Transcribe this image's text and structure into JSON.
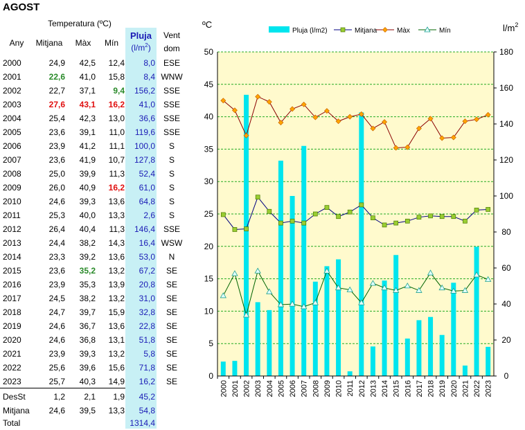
{
  "title": "AGOST",
  "table": {
    "header_group": "Temperatura (ºC)",
    "col_any": "Any",
    "col_mitjana": "Mitjana",
    "col_max": "Màx",
    "col_min": "Mín",
    "col_pluja": "Pluja",
    "col_pluja_unit_a": "(l/m",
    "col_pluja_unit_sup": "2",
    "col_pluja_unit_b": ")",
    "col_vent_a": "Vent",
    "col_vent_b": "dom",
    "rows": [
      {
        "year": "2000",
        "mitjana": "24,9",
        "max": "42,5",
        "min": "12,4",
        "pluja": "8,0",
        "vent": "ESE"
      },
      {
        "year": "2001",
        "mitjana": "22,6",
        "max": "41,0",
        "min": "15,8",
        "pluja": "8,4",
        "vent": "WNW",
        "mitjana_hl": "green"
      },
      {
        "year": "2002",
        "mitjana": "22,7",
        "max": "37,1",
        "min": "9,4",
        "pluja": "156,2",
        "vent": "SSE",
        "min_hl": "green"
      },
      {
        "year": "2003",
        "mitjana": "27,6",
        "max": "43,1",
        "min": "16,2",
        "pluja": "41,0",
        "vent": "SSE",
        "mitjana_hl": "red",
        "max_hl": "red",
        "min_hl": "red"
      },
      {
        "year": "2004",
        "mitjana": "25,4",
        "max": "42,3",
        "min": "13,0",
        "pluja": "36,6",
        "vent": "SSE"
      },
      {
        "year": "2005",
        "mitjana": "23,6",
        "max": "39,1",
        "min": "11,0",
        "pluja": "119,6",
        "vent": "SSE"
      },
      {
        "year": "2006",
        "mitjana": "23,9",
        "max": "41,2",
        "min": "11,1",
        "pluja": "100,0",
        "vent": "S"
      },
      {
        "year": "2007",
        "mitjana": "23,6",
        "max": "41,9",
        "min": "10,7",
        "pluja": "127,8",
        "vent": "S"
      },
      {
        "year": "2008",
        "mitjana": "25,0",
        "max": "39,9",
        "min": "11,3",
        "pluja": "52,4",
        "vent": "S"
      },
      {
        "year": "2009",
        "mitjana": "26,0",
        "max": "40,9",
        "min": "16,2",
        "pluja": "61,0",
        "vent": "S",
        "min_hl": "red"
      },
      {
        "year": "2010",
        "mitjana": "24,6",
        "max": "39,3",
        "min": "13,6",
        "pluja": "64,8",
        "vent": "S"
      },
      {
        "year": "2011",
        "mitjana": "25,3",
        "max": "40,0",
        "min": "13,3",
        "pluja": "2,6",
        "vent": "S"
      },
      {
        "year": "2012",
        "mitjana": "26,4",
        "max": "40,4",
        "min": "11,3",
        "pluja": "146,4",
        "vent": "SSE"
      },
      {
        "year": "2013",
        "mitjana": "24,4",
        "max": "38,2",
        "min": "14,3",
        "pluja": "16,4",
        "vent": "WSW"
      },
      {
        "year": "2014",
        "mitjana": "23,3",
        "max": "39,2",
        "min": "13,6",
        "pluja": "53,0",
        "vent": "N"
      },
      {
        "year": "2015",
        "mitjana": "23,6",
        "max": "35,2",
        "min": "13,2",
        "pluja": "67,2",
        "vent": "SE",
        "max_hl": "green"
      },
      {
        "year": "2016",
        "mitjana": "23,9",
        "max": "35,3",
        "min": "13,9",
        "pluja": "20,8",
        "vent": "SE"
      },
      {
        "year": "2017",
        "mitjana": "24,5",
        "max": "38,2",
        "min": "13,2",
        "pluja": "31,0",
        "vent": "SE"
      },
      {
        "year": "2018",
        "mitjana": "24,7",
        "max": "39,7",
        "min": "15,9",
        "pluja": "32,8",
        "vent": "SE"
      },
      {
        "year": "2019",
        "mitjana": "24,6",
        "max": "36,7",
        "min": "13,6",
        "pluja": "22,8",
        "vent": "SE"
      },
      {
        "year": "2020",
        "mitjana": "24,6",
        "max": "36,8",
        "min": "13,1",
        "pluja": "51,8",
        "vent": "SE"
      },
      {
        "year": "2021",
        "mitjana": "23,9",
        "max": "39,3",
        "min": "13,2",
        "pluja": "5,8",
        "vent": "SE"
      },
      {
        "year": "2022",
        "mitjana": "25,6",
        "max": "39,6",
        "min": "15,6",
        "pluja": "71,8",
        "vent": "SE"
      },
      {
        "year": "2023",
        "mitjana": "25,7",
        "max": "40,3",
        "min": "14,9",
        "pluja": "16,2",
        "vent": "SE"
      }
    ],
    "desst": {
      "label": "DesSt",
      "mitjana": "1,2",
      "max": "2,1",
      "min": "1,9",
      "pluja": "45,2"
    },
    "mitjana_row": {
      "label": "Mitjana",
      "mitjana": "24,6",
      "max": "39,5",
      "min": "13,3",
      "pluja": "54,8"
    },
    "total": {
      "label": "Total",
      "pluja": "1314,4"
    }
  },
  "chart_data": {
    "type": "bar",
    "x": [
      "2000",
      "2001",
      "2002",
      "2003",
      "2004",
      "2005",
      "2006",
      "2007",
      "2008",
      "2009",
      "2010",
      "2011",
      "2012",
      "2013",
      "2014",
      "2015",
      "2016",
      "2017",
      "2018",
      "2019",
      "2020",
      "2021",
      "2022",
      "2023"
    ],
    "left_axis_label": "ºC",
    "right_axis_label_base": "l/m",
    "right_axis_label_sup": "2",
    "ylim_left": [
      0,
      50
    ],
    "ylim_right": [
      0,
      180
    ],
    "yticks_left": [
      "0",
      "5",
      "10",
      "15",
      "20",
      "25",
      "30",
      "35",
      "40",
      "45",
      "50"
    ],
    "yticks_right": [
      "0",
      "20",
      "40",
      "60",
      "80",
      "100",
      "120",
      "140",
      "160",
      "180"
    ],
    "grid": true,
    "legend_position": "top",
    "plot_background": "#fffacd",
    "series": [
      {
        "name": "Pluja (l/m2)",
        "kind": "bar",
        "axis": "right",
        "color": "#00e5ee",
        "values": [
          8.0,
          8.4,
          156.2,
          41.0,
          36.6,
          119.6,
          100.0,
          127.8,
          52.4,
          61.0,
          64.8,
          2.6,
          146.4,
          16.4,
          53.0,
          67.2,
          20.8,
          31.0,
          32.8,
          22.8,
          51.8,
          5.8,
          71.8,
          16.2
        ]
      },
      {
        "name": "Mitjana",
        "kind": "line",
        "axis": "left",
        "color": "#000080",
        "marker": "square",
        "marker_color": "#9acd32",
        "values": [
          24.9,
          22.6,
          22.7,
          27.6,
          25.4,
          23.6,
          23.9,
          23.6,
          25.0,
          26.0,
          24.6,
          25.3,
          26.4,
          24.4,
          23.3,
          23.6,
          23.9,
          24.5,
          24.7,
          24.6,
          24.6,
          23.9,
          25.6,
          25.7
        ]
      },
      {
        "name": "Màx",
        "kind": "line",
        "axis": "left",
        "color": "#8b0000",
        "marker": "diamond",
        "marker_color": "#ffa500",
        "values": [
          42.5,
          41.0,
          37.1,
          43.1,
          42.3,
          39.1,
          41.2,
          41.9,
          39.9,
          40.9,
          39.3,
          40.0,
          40.4,
          38.2,
          39.2,
          35.2,
          35.3,
          38.2,
          39.7,
          36.7,
          36.8,
          39.3,
          39.6,
          40.3
        ]
      },
      {
        "name": "Mín",
        "kind": "line",
        "axis": "left",
        "color": "#006400",
        "marker": "triangle",
        "marker_color": "#e0ffff",
        "values": [
          12.4,
          15.8,
          9.4,
          16.2,
          13.0,
          11.0,
          11.1,
          10.7,
          11.3,
          16.2,
          13.6,
          13.3,
          11.3,
          14.3,
          13.6,
          13.2,
          13.9,
          13.2,
          15.9,
          13.6,
          13.1,
          13.2,
          15.6,
          14.9
        ]
      }
    ]
  }
}
